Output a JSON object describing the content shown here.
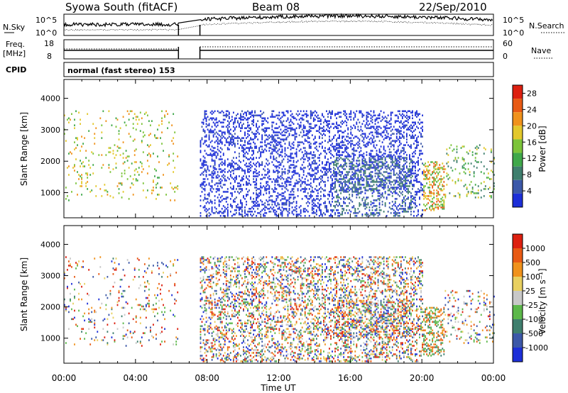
{
  "header": {
    "station": "Syowa South (fitACF)",
    "beam": "Beam 08",
    "date": "22/Sep/2010"
  },
  "top_panels": {
    "nsky_label": "N.Sky",
    "nsky_ticks": [
      "10^5",
      "10^0"
    ],
    "nsky_right_ticks": [
      "10^5",
      "10^0"
    ],
    "nsearch_label": "N.Search",
    "freq_label": "Freq.",
    "freq_unit": "[MHz]",
    "freq_ticks": [
      "18",
      "8"
    ],
    "nave_ticks": [
      "60",
      "0"
    ],
    "nave_label": "Nave",
    "cpid_label": "CPID",
    "cpid_text": "normal (fast stereo) 153"
  },
  "chart_data": [
    {
      "type": "heatmap",
      "name": "power",
      "ylabel": "Slant Range [km]",
      "xlabel": "Time UT",
      "x_ticks": [
        "00:00",
        "04:00",
        "08:00",
        "12:00",
        "16:00",
        "20:00",
        "00:00"
      ],
      "xlim_hours": [
        0,
        24
      ],
      "ylim": [
        200,
        4600
      ],
      "y_ticks": [
        1000,
        2000,
        3000,
        4000
      ],
      "colorbar": {
        "label": "Power [dB]",
        "ticks": [
          "4",
          "8",
          "12",
          "16",
          "20",
          "24",
          "28"
        ],
        "range": [
          0,
          30
        ],
        "colors": [
          "#1d2fd8",
          "#3c58a8",
          "#3f7f6e",
          "#3fa84a",
          "#7cc43a",
          "#e3c82c",
          "#f0921c",
          "#e85a14",
          "#dd2010"
        ]
      }
    },
    {
      "type": "heatmap",
      "name": "velocity",
      "ylabel": "Slant Range [km]",
      "xlabel": "Time UT",
      "x_ticks": [
        "00:00",
        "04:00",
        "08:00",
        "12:00",
        "16:00",
        "20:00",
        "00:00"
      ],
      "xlim_hours": [
        0,
        24
      ],
      "ylim": [
        200,
        4600
      ],
      "y_ticks": [
        1000,
        2000,
        3000,
        4000
      ],
      "colorbar": {
        "label": "Velocity [m s⁻¹]",
        "ticks": [
          "1000",
          "500",
          "100",
          "25",
          "-25",
          "-100",
          "-500",
          "-1000"
        ],
        "colors": [
          "#1d2fd8",
          "#3c58a8",
          "#3f7f6e",
          "#5cb84a",
          "#c8c8c8",
          "#e8d060",
          "#f0921c",
          "#e85a14",
          "#dd2010"
        ]
      }
    }
  ],
  "data_gap_hours": [
    6.4,
    7.6
  ]
}
